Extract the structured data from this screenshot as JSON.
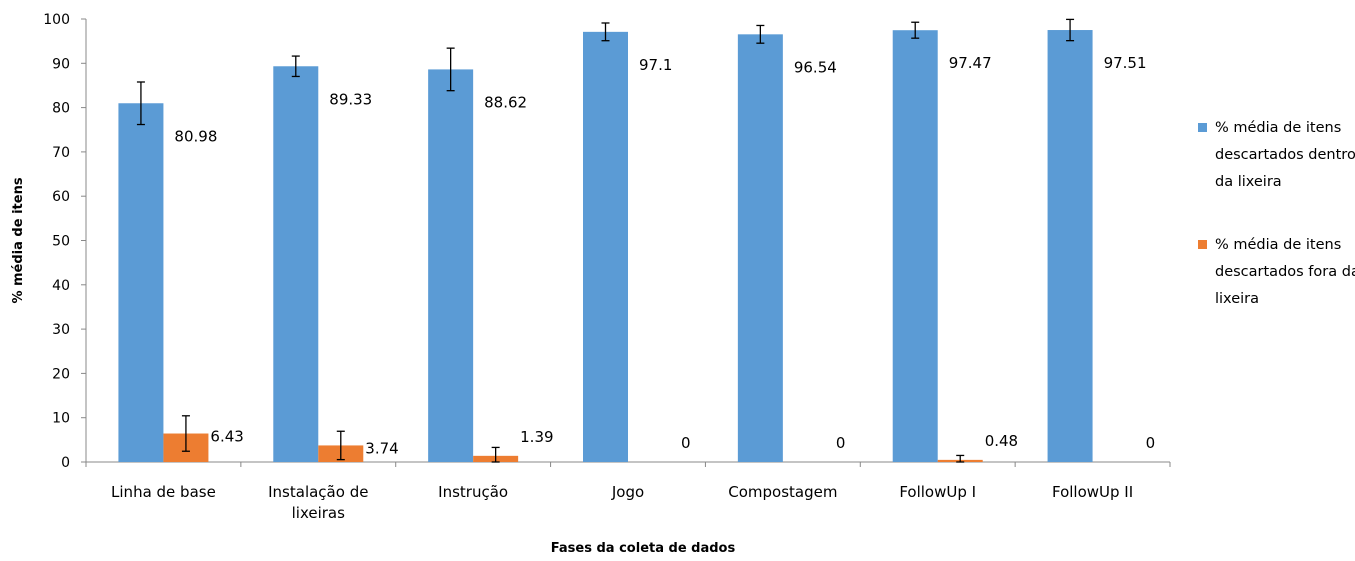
{
  "chart_data": {
    "type": "bar",
    "title": "",
    "xlabel": "Fases da coleta de dados",
    "ylabel": "% média de itens",
    "ylim": [
      0,
      100
    ],
    "yticks": [
      0,
      10,
      20,
      30,
      40,
      50,
      60,
      70,
      80,
      90,
      100
    ],
    "grid": false,
    "legend_position": "right",
    "categories": [
      [
        "Linha de base"
      ],
      [
        "Instalação de",
        "lixeiras"
      ],
      [
        "Instrução"
      ],
      [
        "Jogo"
      ],
      [
        "Compostagem"
      ],
      [
        "FollowUp I"
      ],
      [
        "FollowUp II"
      ]
    ],
    "series": [
      {
        "name_lines": [
          "% média de itens",
          "descartados  dentro",
          "da lixeira"
        ],
        "color": "#5b9bd5",
        "values": [
          80.98,
          89.33,
          88.62,
          97.1,
          96.54,
          97.47,
          97.51
        ],
        "labels": [
          "80.98",
          "89.33",
          "88.62",
          "97.1",
          "96.54",
          "97.47",
          "97.51"
        ],
        "error": [
          4.8,
          2.3,
          4.8,
          2.0,
          2.0,
          1.8,
          2.4
        ]
      },
      {
        "name_lines": [
          "% média de itens",
          "descartados fora da",
          "lixeira"
        ],
        "color": "#ed7d31",
        "values": [
          6.43,
          3.74,
          1.39,
          0,
          0,
          0.48,
          0
        ],
        "labels": [
          "6.43",
          "3.74",
          "1.39",
          "0",
          "0",
          "0.48",
          "0"
        ],
        "error": [
          4.0,
          3.2,
          1.9,
          0,
          0,
          1.0,
          0
        ]
      }
    ]
  }
}
